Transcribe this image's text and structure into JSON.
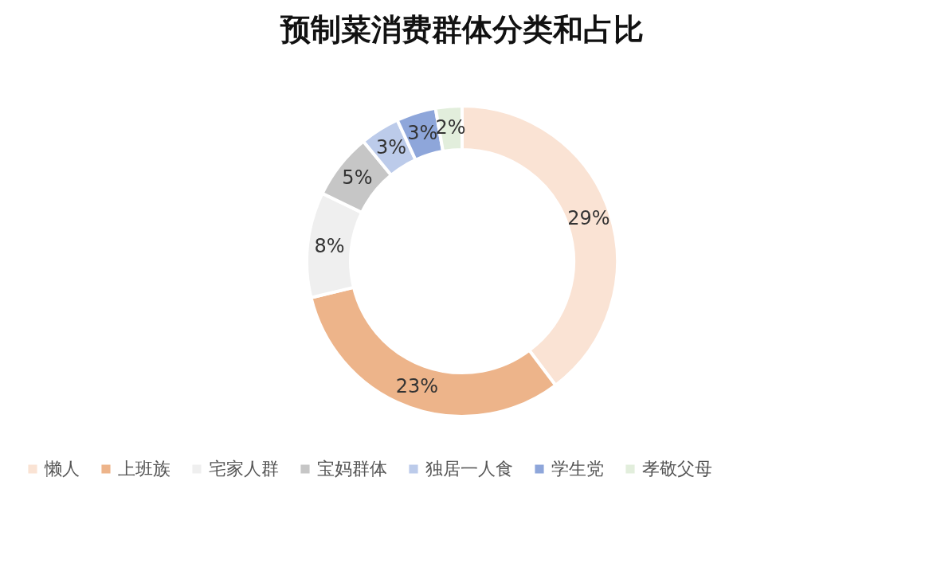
{
  "chart_data": {
    "type": "donut",
    "title": "预制菜消费群体分类和占比",
    "categories": [
      "懒人",
      "上班族",
      "宅家人群",
      "宝妈群体",
      "独居一人食",
      "学生党",
      "孝敬父母"
    ],
    "values": [
      29,
      23,
      8,
      5,
      3,
      3,
      2
    ],
    "value_labels": [
      "29%",
      "23%",
      "8%",
      "5%",
      "3%",
      "3%",
      "2%"
    ],
    "colors": [
      "#fae3d4",
      "#edb48a",
      "#efefef",
      "#c6c6c6",
      "#bccbea",
      "#8ea6da",
      "#e2eedc"
    ],
    "legend": "bottom"
  }
}
